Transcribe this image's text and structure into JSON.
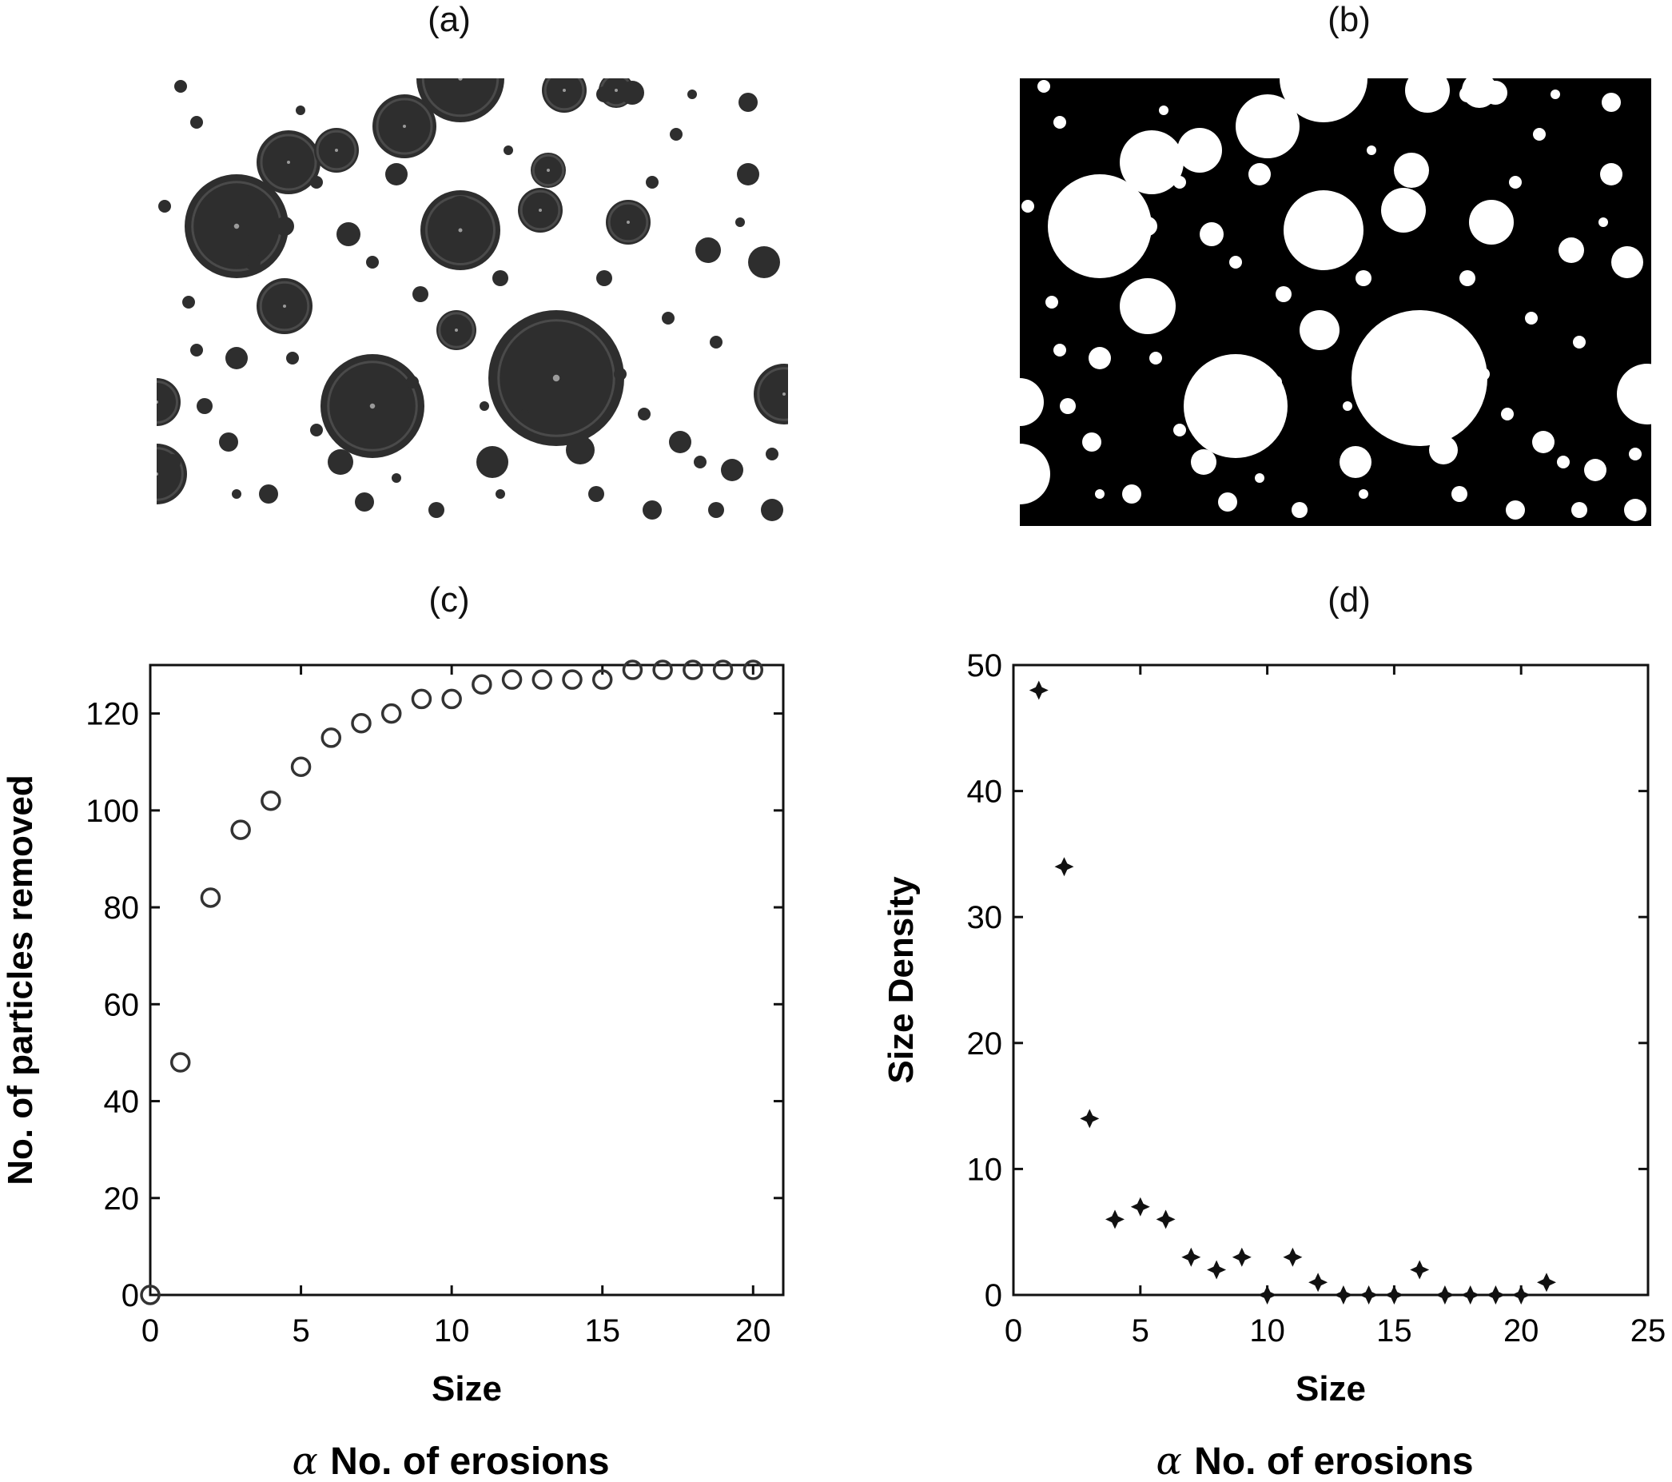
{
  "panels": {
    "a": {
      "label": "(a)"
    },
    "b": {
      "label": "(b)"
    },
    "c": {
      "label": "(c)"
    },
    "d": {
      "label": "(d)"
    }
  },
  "colors": {
    "background": "#ffffff",
    "ink": "#111111",
    "droplet": "#2e2e2e",
    "binary_bg": "#000000",
    "binary_fg": "#ffffff"
  },
  "chart_data": [
    {
      "id": "c",
      "type": "scatter",
      "marker": "open-circle",
      "title": "",
      "xlabel": "Size",
      "ylabel": "No. of particles removed",
      "xlim": [
        0,
        21
      ],
      "ylim": [
        0,
        130
      ],
      "xticks": [
        0,
        5,
        10,
        15,
        20
      ],
      "yticks": [
        0,
        20,
        40,
        60,
        80,
        100,
        120
      ],
      "x": [
        0,
        1,
        2,
        3,
        4,
        5,
        6,
        7,
        8,
        9,
        10,
        11,
        12,
        13,
        14,
        15,
        16,
        17,
        18,
        19,
        20
      ],
      "y": [
        0,
        48,
        82,
        96,
        102,
        109,
        115,
        118,
        120,
        123,
        123,
        126,
        127,
        127,
        127,
        127,
        129,
        129,
        129,
        129,
        129
      ],
      "caption": "α No. of erosions"
    },
    {
      "id": "d",
      "type": "scatter",
      "marker": "star",
      "title": "",
      "xlabel": "Size",
      "ylabel": "Size Density",
      "xlim": [
        0,
        25
      ],
      "ylim": [
        0,
        50
      ],
      "xticks": [
        0,
        5,
        10,
        15,
        20,
        25
      ],
      "yticks": [
        0,
        10,
        20,
        30,
        40,
        50
      ],
      "x": [
        1,
        2,
        3,
        4,
        5,
        6,
        7,
        8,
        9,
        10,
        11,
        12,
        13,
        14,
        15,
        16,
        17,
        18,
        19,
        20,
        21
      ],
      "y": [
        48,
        34,
        14,
        6,
        7,
        6,
        3,
        2,
        3,
        0,
        3,
        1,
        0,
        0,
        0,
        2,
        0,
        0,
        0,
        0,
        1
      ],
      "caption": "α No. of erosions"
    }
  ]
}
